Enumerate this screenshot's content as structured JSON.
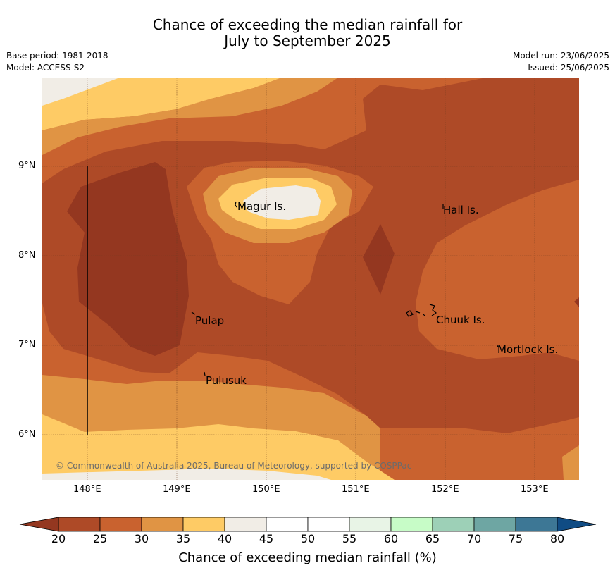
{
  "title_line1": "Chance of exceeding the median rainfall for",
  "title_line2": "July to September 2025",
  "base_period": "Base period: 1981-2018",
  "model": "Model: ACCESS-S2",
  "model_run": "Model run: 23/06/2025",
  "issued": "Issued: 25/06/2025",
  "map": {
    "lon_range": [
      147.5,
      153.5
    ],
    "lat_range": [
      5.5,
      10.0
    ],
    "lon_ticks": [
      "148°E",
      "149°E",
      "150°E",
      "151°E",
      "152°E",
      "153°E"
    ],
    "lat_ticks": [
      "9°N",
      "8°N",
      "7°N",
      "6°N"
    ],
    "grid": true,
    "places": [
      {
        "name": "Magur Is."
      },
      {
        "name": "Hall Is."
      },
      {
        "name": "Pulap"
      },
      {
        "name": "Chuuk Is."
      },
      {
        "name": "Mortlock Is."
      },
      {
        "name": "Pulusuk"
      }
    ],
    "copyright": "© Commonwealth of Australia 2025, Bureau of Meteorology, supported by COSPPac"
  },
  "colorbar": {
    "label": "Chance of exceeding median rainfall (%)",
    "ticks": [
      "20",
      "25",
      "30",
      "35",
      "40",
      "45",
      "50",
      "55",
      "60",
      "65",
      "70",
      "75",
      "80"
    ],
    "colors": [
      "#ae4a27",
      "#c9622f",
      "#e09444",
      "#fecb65",
      "#f1ede6",
      "#ffffff",
      "#ffffff",
      "#e8f4e6",
      "#c7fcc7",
      "#9dd0b7",
      "#6ea6a3",
      "#3d7795"
    ],
    "under_color": "#943720",
    "over_color": "#104c84"
  }
}
